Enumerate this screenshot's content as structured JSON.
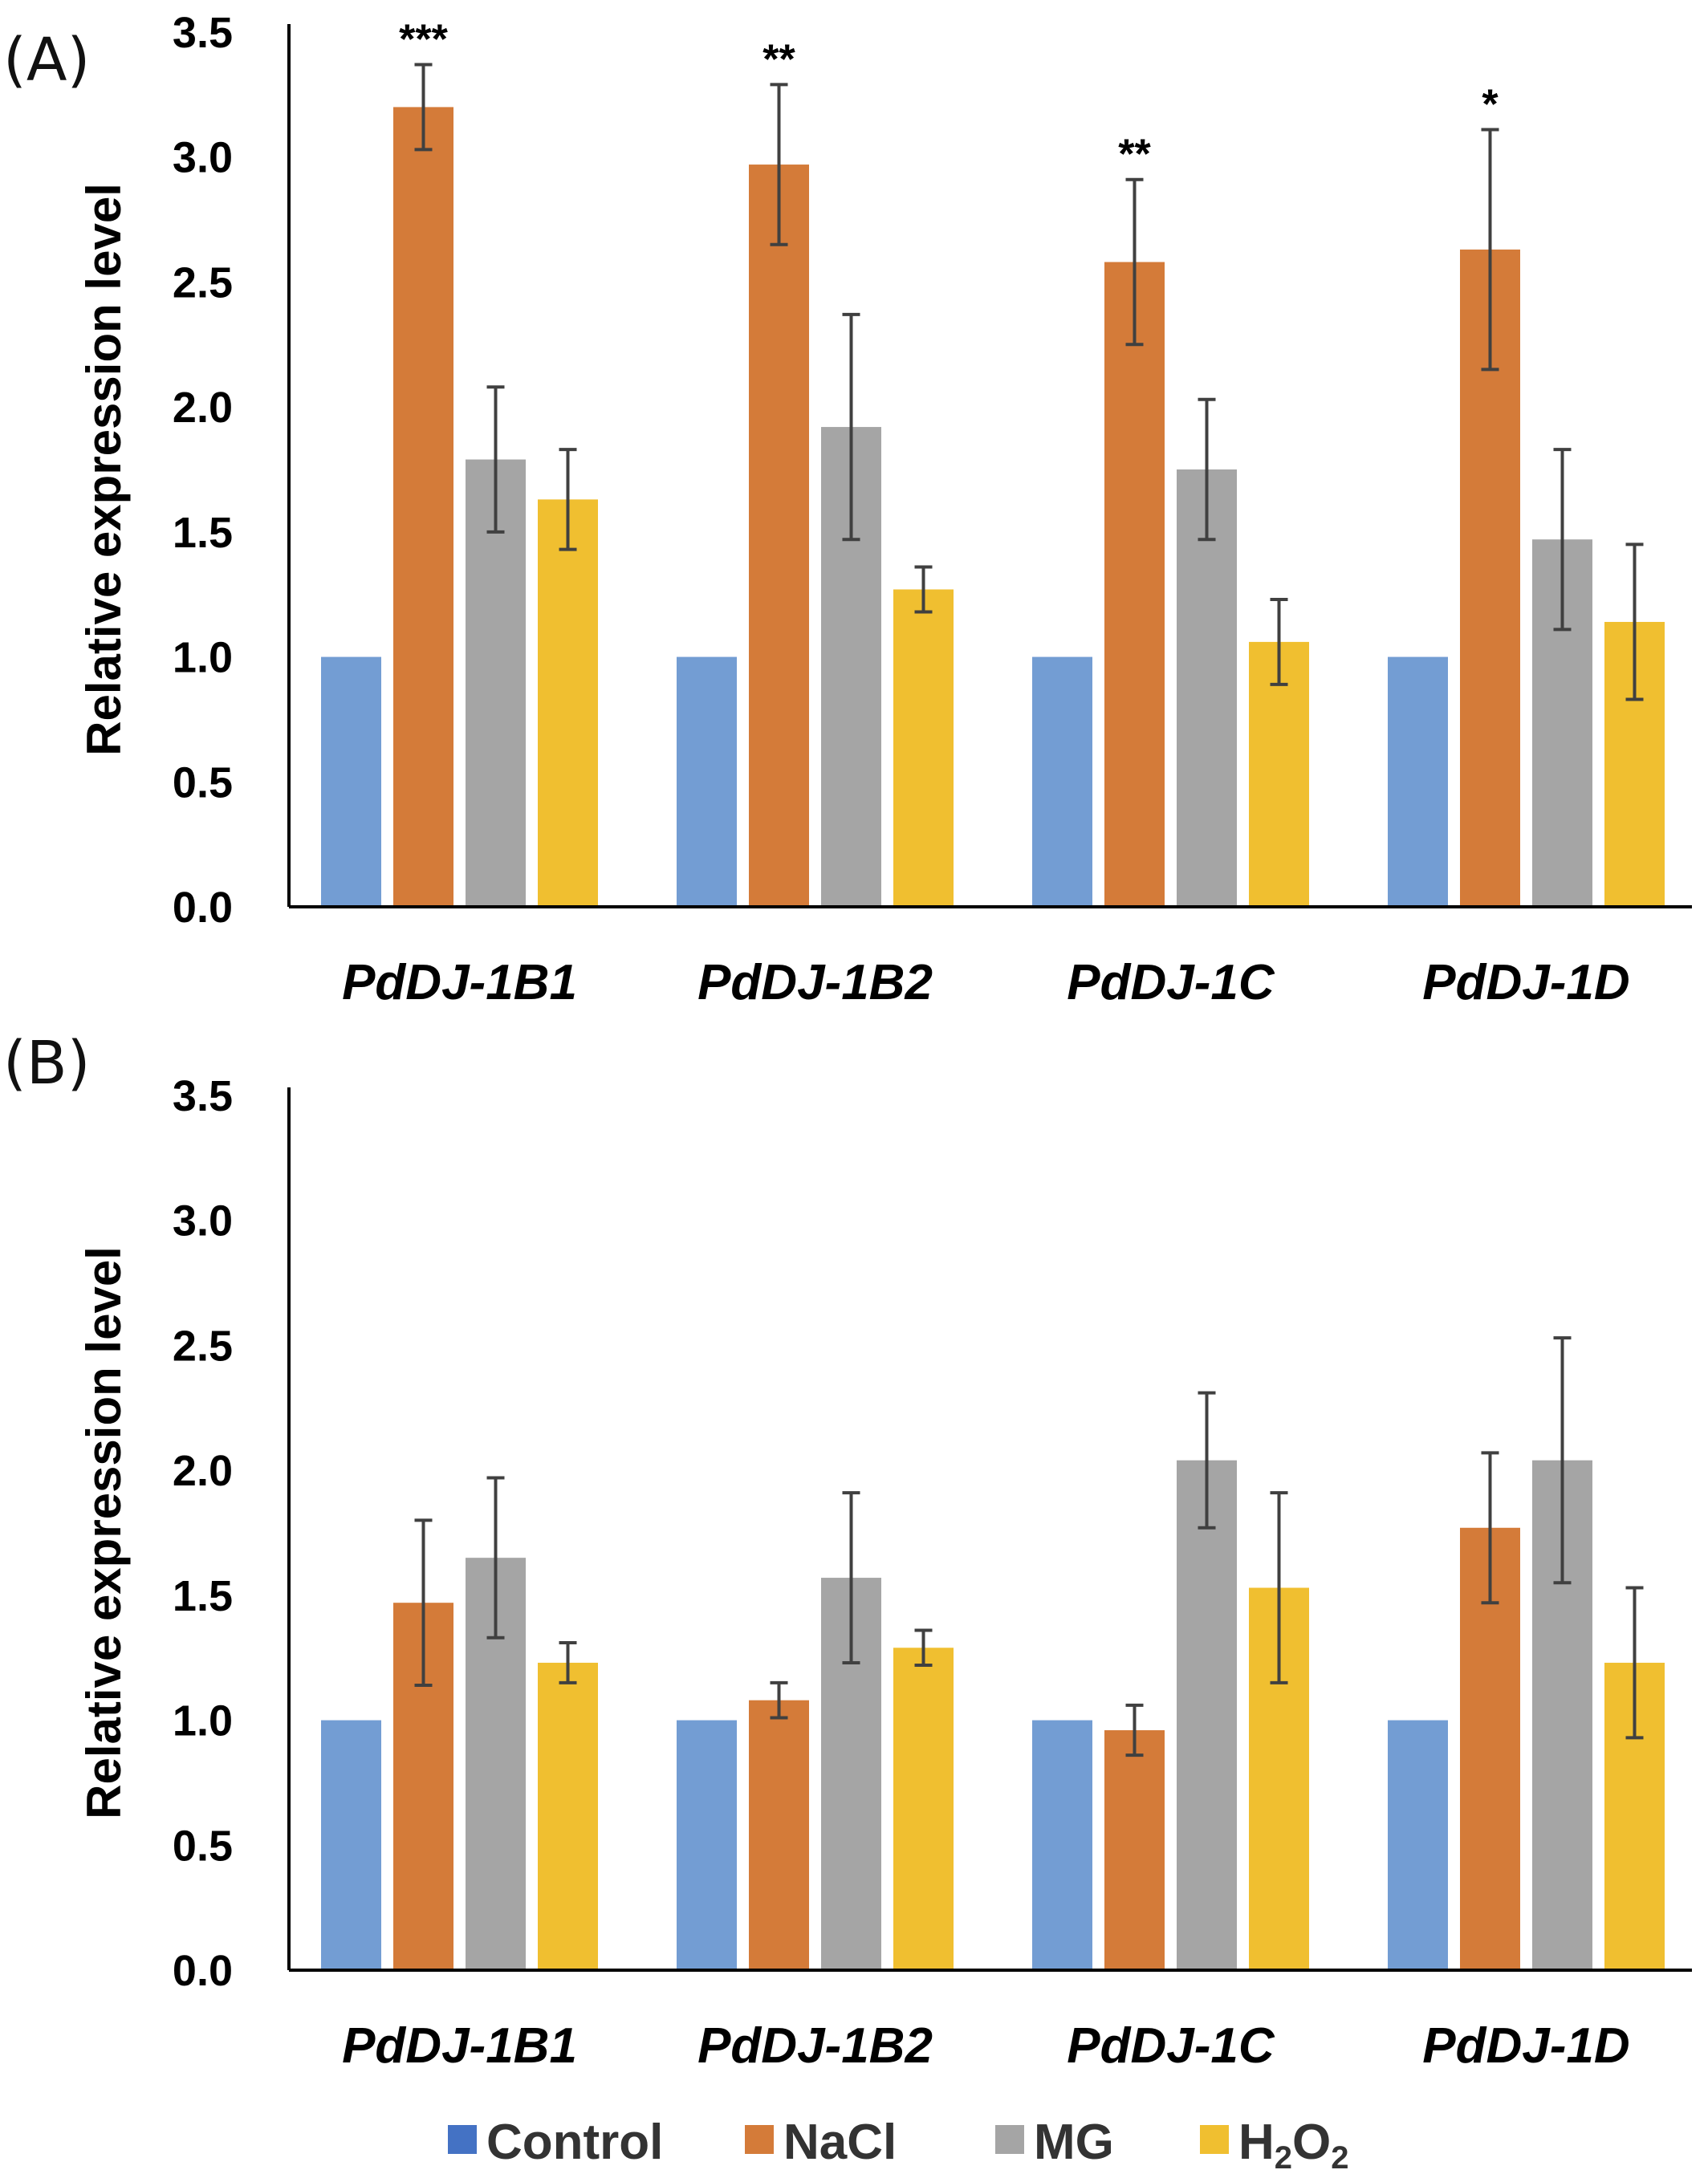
{
  "colors": {
    "Control": "#739dd3",
    "NaCl": "#d47b39",
    "MG": "#a5a5a5",
    "H2O2": "#f0bf30",
    "legend_control": "#4472c4",
    "errorbar": "#404040",
    "axis": "#000000"
  },
  "legend": {
    "items": [
      {
        "key": "Control",
        "label": "Control"
      },
      {
        "key": "NaCl",
        "label": "NaCl"
      },
      {
        "key": "MG",
        "label": "MG"
      },
      {
        "key": "H2O2",
        "label": "H",
        "sub1": "2",
        "mid": "O",
        "sub2": "2"
      }
    ],
    "placement": "bottom"
  },
  "chart_data": [
    {
      "panel": "(A)",
      "type": "bar",
      "xlabel": "",
      "ylabel": "Relative expression level",
      "ylim": [
        0,
        3.5
      ],
      "yticks": [
        "0.0",
        "0.5",
        "1.0",
        "1.5",
        "2.0",
        "2.5",
        "3.0",
        "3.5"
      ],
      "grid": false,
      "categories": [
        "PdDJ-1B1",
        "PdDJ-1B2",
        "PdDJ-1C",
        "PdDJ-1D"
      ],
      "series": [
        {
          "name": "Control",
          "values": [
            1.0,
            1.0,
            1.0,
            1.0
          ],
          "errors": [
            0,
            0,
            0,
            0
          ]
        },
        {
          "name": "NaCl",
          "values": [
            3.2,
            2.97,
            2.58,
            2.63
          ],
          "errors": [
            0.17,
            0.32,
            0.33,
            0.48
          ]
        },
        {
          "name": "MG",
          "values": [
            1.79,
            1.92,
            1.75,
            1.47
          ],
          "errors": [
            0.29,
            0.45,
            0.28,
            0.36
          ]
        },
        {
          "name": "H2O2",
          "values": [
            1.63,
            1.27,
            1.06,
            1.14
          ],
          "errors": [
            0.2,
            0.09,
            0.17,
            0.31
          ]
        }
      ],
      "annotations": [
        {
          "category": "PdDJ-1B1",
          "series": "NaCl",
          "text": "***"
        },
        {
          "category": "PdDJ-1B2",
          "series": "NaCl",
          "text": "**"
        },
        {
          "category": "PdDJ-1C",
          "series": "NaCl",
          "text": "**"
        },
        {
          "category": "PdDJ-1D",
          "series": "NaCl",
          "text": "*"
        }
      ]
    },
    {
      "panel": "(B)",
      "type": "bar",
      "xlabel": "",
      "ylabel": "Relative expression level",
      "ylim": [
        0,
        3.5
      ],
      "yticks": [
        "0.0",
        "0.5",
        "1.0",
        "1.5",
        "2.0",
        "2.5",
        "3.0",
        "3.5"
      ],
      "grid": false,
      "categories": [
        "PdDJ-1B1",
        "PdDJ-1B2",
        "PdDJ-1C",
        "PdDJ-1D"
      ],
      "series": [
        {
          "name": "Control",
          "values": [
            1.0,
            1.0,
            1.0,
            1.0
          ],
          "errors": [
            0,
            0,
            0,
            0
          ]
        },
        {
          "name": "NaCl",
          "values": [
            1.47,
            1.08,
            0.96,
            1.77
          ],
          "errors": [
            0.33,
            0.07,
            0.1,
            0.3
          ]
        },
        {
          "name": "MG",
          "values": [
            1.65,
            1.57,
            2.04,
            2.04
          ],
          "errors": [
            0.32,
            0.34,
            0.27,
            0.49
          ]
        },
        {
          "name": "H2O2",
          "values": [
            1.23,
            1.29,
            1.53,
            1.23
          ],
          "errors": [
            0.08,
            0.07,
            0.38,
            0.3
          ]
        }
      ],
      "annotations": []
    }
  ]
}
